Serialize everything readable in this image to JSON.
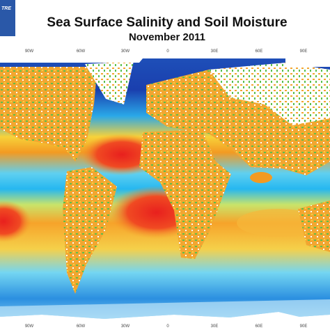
{
  "header": {
    "title": "Sea Surface Salinity and Soil Moisture",
    "subtitle": "November 2011"
  },
  "logo": {
    "text": "TRE"
  },
  "map": {
    "top_labels": [
      "90W",
      "60W",
      "30W",
      "0",
      "30E",
      "60E",
      "90E"
    ],
    "bottom_labels": [
      "90W",
      "60W",
      "30W",
      "0",
      "30E",
      "60E",
      "90E"
    ]
  }
}
